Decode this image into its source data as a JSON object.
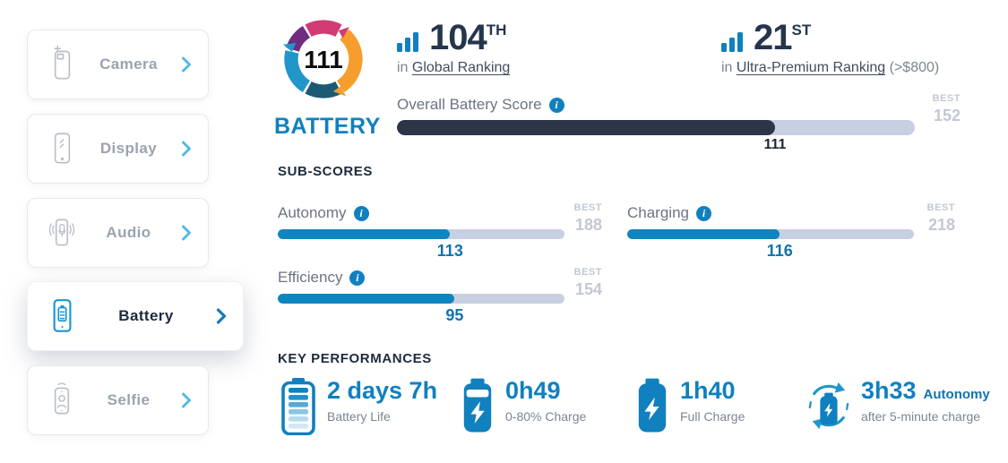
{
  "colors": {
    "accent_blue": "#0f85c0",
    "dark_navy": "#25354c",
    "overall_bar_fill": "#2d3648",
    "bar_track": "#c9cfe2",
    "value_blue": "#1173ae",
    "muted_gray": "#7b8591",
    "best_gray": "#c2c8d4",
    "logo_pink": "#d23a74",
    "logo_purple": "#6f2d82",
    "logo_orange": "#f59e2d",
    "logo_teal": "#1c5a74",
    "logo_light_blue": "#2196c9"
  },
  "sidebar": {
    "items": [
      {
        "label": "Camera",
        "icon": "camera-phone-icon",
        "selected": false
      },
      {
        "label": "Display",
        "icon": "display-phone-icon",
        "selected": false
      },
      {
        "label": "Audio",
        "icon": "audio-phone-icon",
        "selected": false
      },
      {
        "label": "Battery",
        "icon": "battery-phone-icon",
        "selected": true
      },
      {
        "label": "Selfie",
        "icon": "selfie-phone-icon",
        "selected": false
      }
    ]
  },
  "logo": {
    "score": "111",
    "label": "BATTERY"
  },
  "rankings": [
    {
      "rank": "104",
      "ordinal": "TH",
      "prefix": "in ",
      "link": "Global Ranking",
      "suffix": ""
    },
    {
      "rank": "21",
      "ordinal": "ST",
      "prefix": "in ",
      "link": "Ultra-Premium Ranking",
      "suffix": " (>$800)"
    }
  ],
  "overall": {
    "label": "Overall Battery Score",
    "value": 111,
    "best": 152,
    "best_label": "BEST"
  },
  "subscores": {
    "title": "SUB-SCORES",
    "best_label": "BEST",
    "items": [
      {
        "label": "Autonomy",
        "value": 113,
        "best": 188
      },
      {
        "label": "Charging",
        "value": 116,
        "best": 218
      },
      {
        "label": "Efficiency",
        "value": 95,
        "best": 154
      }
    ]
  },
  "key_performances": {
    "title": "KEY PERFORMANCES",
    "items": [
      {
        "value": "2 days 7h",
        "label": "Battery Life",
        "icon": "battery-level-icon"
      },
      {
        "value": "0h49",
        "label": "0-80% Charge",
        "icon": "battery-charging-icon"
      },
      {
        "value": "1h40",
        "label": "Full Charge",
        "icon": "battery-full-charge-icon"
      },
      {
        "value": "3h33",
        "value_suffix": "Autonomy",
        "label": "after 5-minute charge",
        "icon": "battery-refresh-icon"
      }
    ]
  }
}
